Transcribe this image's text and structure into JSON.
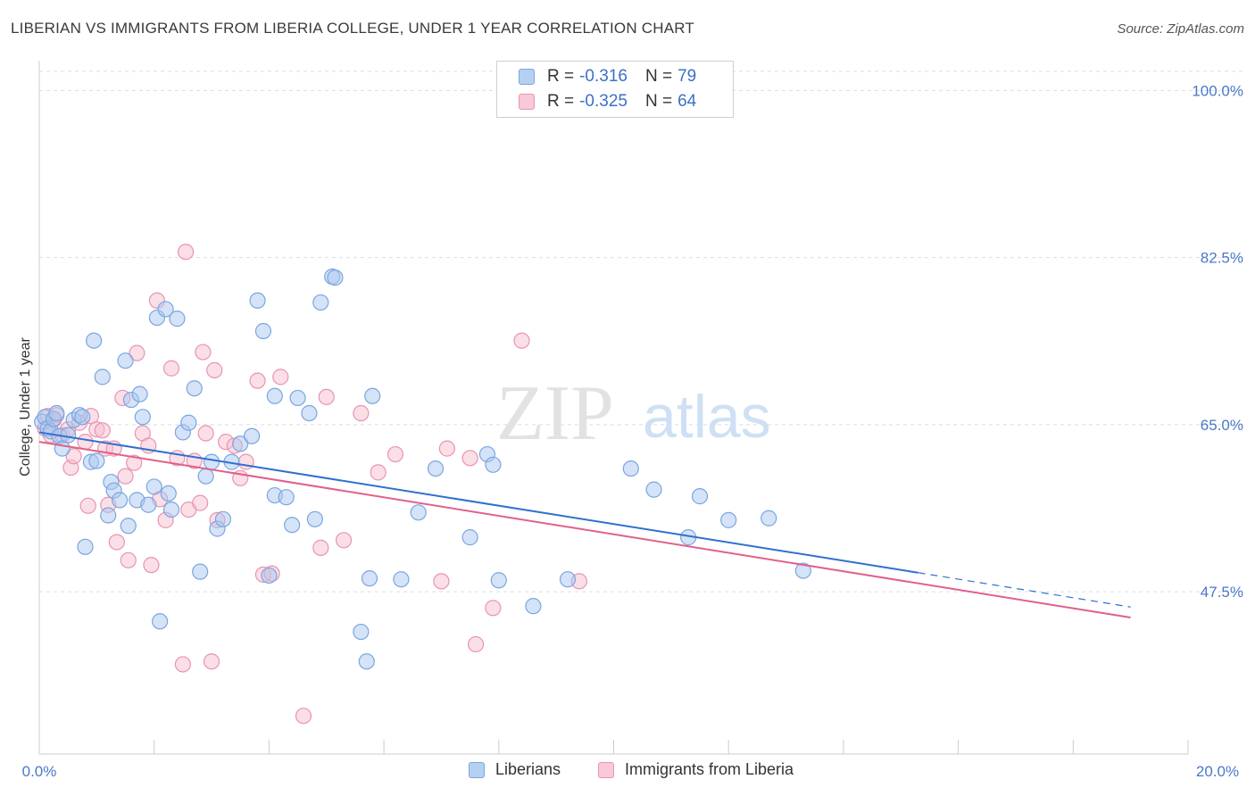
{
  "header": {
    "title": "LIBERIAN VS IMMIGRANTS FROM LIBERIA COLLEGE, UNDER 1 YEAR CORRELATION CHART",
    "source": "Source: ZipAtlas.com"
  },
  "legend": {
    "series1": {
      "r_label": "R = ",
      "r_value": "-0.316",
      "n_label": "N = ",
      "n_value": "79"
    },
    "series2": {
      "r_label": "R = ",
      "r_value": "-0.325",
      "n_label": "N = ",
      "n_value": "64"
    }
  },
  "bottom_legend": {
    "series1": "Liberians",
    "series2": "Immigrants from Liberia"
  },
  "colors": {
    "blue_fill": "#a9c8f0",
    "blue_stroke": "#7aa6e0",
    "blue_line": "#2f6fd0",
    "pink_fill": "#f6bfd0",
    "pink_stroke": "#ea93b0",
    "pink_line": "#e0608c",
    "grid": "#dddddd",
    "axis_text": "#4a78c8",
    "watermark": "#e2e2e2"
  },
  "watermark": {
    "zip": "ZIP",
    "atlas": "atlas"
  },
  "chart_data": {
    "type": "scatter",
    "ylabel": "College, Under 1 year",
    "x_tick_labels": [
      "0.0%",
      "20.0%"
    ],
    "y_tick_labels": [
      "100.0%",
      "82.5%",
      "65.0%",
      "47.5%"
    ],
    "y_ticks": [
      100.0,
      82.5,
      65.0,
      47.5
    ],
    "xlim": [
      0,
      20
    ],
    "ylim": [
      30.5,
      102.0
    ],
    "grid": true,
    "series": [
      {
        "name": "Liberians",
        "trend": {
          "x0": 0.0,
          "y0": 64.2,
          "x1": 15.3,
          "y1": 49.5,
          "dash_to_x": 19.0,
          "dash_to_y": 45.9
        },
        "points": [
          [
            0.05,
            65.3
          ],
          [
            0.1,
            65.8
          ],
          [
            0.15,
            64.6
          ],
          [
            0.2,
            64.3
          ],
          [
            0.25,
            65.6
          ],
          [
            0.3,
            66.2
          ],
          [
            0.35,
            63.8
          ],
          [
            0.4,
            62.5
          ],
          [
            0.5,
            63.9
          ],
          [
            0.6,
            65.5
          ],
          [
            0.7,
            66.0
          ],
          [
            0.75,
            65.8
          ],
          [
            0.8,
            52.2
          ],
          [
            0.9,
            61.1
          ],
          [
            0.95,
            73.8
          ],
          [
            1.0,
            61.2
          ],
          [
            1.1,
            70.0
          ],
          [
            1.2,
            55.5
          ],
          [
            1.25,
            59.0
          ],
          [
            1.3,
            58.1
          ],
          [
            1.4,
            57.1
          ],
          [
            1.5,
            71.7
          ],
          [
            1.55,
            54.4
          ],
          [
            1.6,
            67.6
          ],
          [
            1.7,
            57.1
          ],
          [
            1.75,
            68.2
          ],
          [
            1.8,
            65.8
          ],
          [
            1.9,
            56.6
          ],
          [
            2.0,
            58.5
          ],
          [
            2.05,
            76.2
          ],
          [
            2.1,
            44.4
          ],
          [
            2.2,
            77.1
          ],
          [
            2.25,
            57.8
          ],
          [
            2.3,
            56.1
          ],
          [
            2.4,
            76.1
          ],
          [
            2.5,
            64.2
          ],
          [
            2.6,
            65.2
          ],
          [
            2.7,
            68.8
          ],
          [
            2.8,
            49.6
          ],
          [
            2.9,
            59.6
          ],
          [
            3.0,
            61.1
          ],
          [
            3.1,
            54.1
          ],
          [
            3.2,
            55.1
          ],
          [
            3.35,
            61.1
          ],
          [
            3.5,
            63.0
          ],
          [
            3.7,
            63.8
          ],
          [
            3.8,
            78.0
          ],
          [
            3.9,
            74.8
          ],
          [
            4.0,
            49.2
          ],
          [
            4.1,
            57.6
          ],
          [
            4.1,
            68.0
          ],
          [
            4.3,
            57.4
          ],
          [
            4.4,
            54.5
          ],
          [
            4.5,
            67.8
          ],
          [
            4.7,
            66.2
          ],
          [
            4.8,
            55.1
          ],
          [
            4.9,
            77.8
          ],
          [
            5.1,
            80.5
          ],
          [
            5.15,
            80.4
          ],
          [
            5.6,
            43.3
          ],
          [
            5.7,
            40.2
          ],
          [
            5.75,
            48.9
          ],
          [
            5.8,
            68.0
          ],
          [
            6.3,
            48.8
          ],
          [
            6.9,
            60.4
          ],
          [
            7.5,
            53.2
          ],
          [
            8.0,
            48.7
          ],
          [
            8.6,
            46.0
          ],
          [
            7.8,
            61.9
          ],
          [
            7.9,
            60.8
          ],
          [
            9.2,
            48.8
          ],
          [
            10.3,
            60.4
          ],
          [
            10.7,
            58.2
          ],
          [
            11.3,
            53.2
          ],
          [
            12.7,
            55.2
          ],
          [
            13.3,
            49.7
          ],
          [
            12.0,
            55.0
          ],
          [
            11.5,
            57.5
          ],
          [
            6.6,
            55.8
          ]
        ]
      },
      {
        "name": "Immigrants from Liberia",
        "trend": {
          "x0": 0.0,
          "y0": 63.2,
          "x1": 19.0,
          "y1": 44.8
        },
        "points": [
          [
            0.1,
            64.6
          ],
          [
            0.15,
            65.9
          ],
          [
            0.2,
            63.9
          ],
          [
            0.25,
            65.5
          ],
          [
            0.3,
            66.0
          ],
          [
            0.4,
            63.9
          ],
          [
            0.5,
            64.5
          ],
          [
            0.55,
            60.5
          ],
          [
            0.6,
            61.7
          ],
          [
            0.7,
            65.2
          ],
          [
            0.8,
            63.2
          ],
          [
            0.85,
            56.5
          ],
          [
            0.9,
            65.9
          ],
          [
            1.0,
            64.5
          ],
          [
            1.1,
            64.4
          ],
          [
            1.15,
            62.5
          ],
          [
            1.2,
            56.6
          ],
          [
            1.3,
            62.5
          ],
          [
            1.35,
            52.7
          ],
          [
            1.45,
            67.8
          ],
          [
            1.5,
            59.6
          ],
          [
            1.55,
            50.8
          ],
          [
            1.65,
            61.0
          ],
          [
            1.7,
            72.5
          ],
          [
            1.8,
            64.1
          ],
          [
            1.9,
            62.8
          ],
          [
            1.95,
            50.3
          ],
          [
            2.05,
            78.0
          ],
          [
            2.1,
            57.2
          ],
          [
            2.2,
            55.0
          ],
          [
            2.3,
            70.9
          ],
          [
            2.4,
            61.5
          ],
          [
            2.5,
            39.9
          ],
          [
            2.55,
            83.1
          ],
          [
            2.6,
            56.1
          ],
          [
            2.7,
            61.2
          ],
          [
            2.8,
            56.8
          ],
          [
            2.85,
            72.6
          ],
          [
            2.9,
            64.1
          ],
          [
            3.0,
            40.2
          ],
          [
            3.1,
            55.0
          ],
          [
            3.05,
            70.7
          ],
          [
            3.25,
            63.2
          ],
          [
            3.4,
            62.8
          ],
          [
            3.5,
            59.4
          ],
          [
            3.6,
            61.1
          ],
          [
            3.8,
            69.6
          ],
          [
            3.9,
            49.3
          ],
          [
            4.05,
            49.4
          ],
          [
            4.2,
            70.0
          ],
          [
            4.6,
            34.5
          ],
          [
            4.9,
            52.1
          ],
          [
            5.0,
            67.9
          ],
          [
            5.3,
            52.9
          ],
          [
            5.6,
            66.2
          ],
          [
            5.9,
            60.0
          ],
          [
            6.2,
            61.9
          ],
          [
            7.0,
            48.6
          ],
          [
            7.1,
            62.5
          ],
          [
            7.5,
            61.5
          ],
          [
            7.6,
            42.0
          ],
          [
            7.9,
            45.8
          ],
          [
            8.4,
            73.8
          ],
          [
            9.4,
            48.6
          ]
        ]
      }
    ]
  }
}
